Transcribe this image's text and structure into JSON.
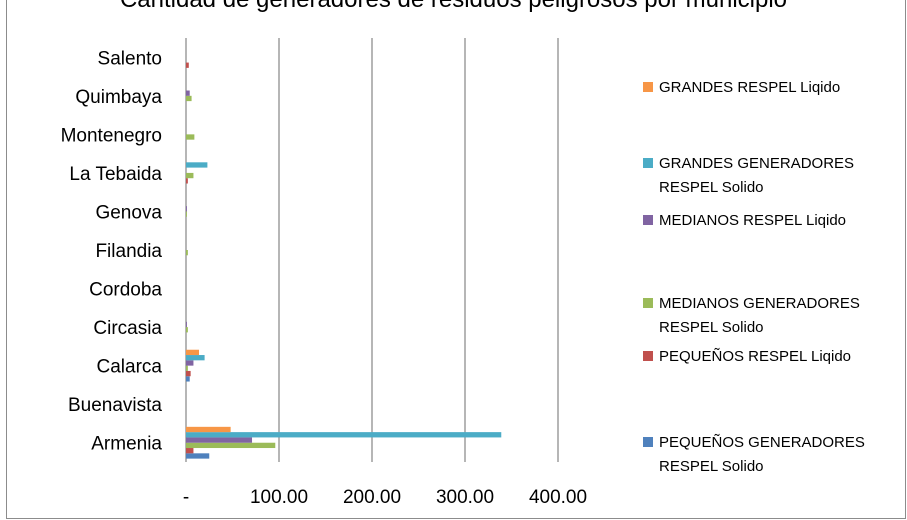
{
  "chart_data": {
    "type": "bar",
    "orientation": "horizontal",
    "title": "Cantidad de generadores de residuos peligrosos por municipio",
    "xlabel": "",
    "ylabel": "",
    "xlim": [
      0,
      400
    ],
    "x_ticks": [
      "-",
      "100.00",
      "200.00",
      "300.00",
      "400.00"
    ],
    "gridlines": "vertical",
    "legend_position": "right",
    "categories": [
      "Armenia",
      "Buenavista",
      "Calarca",
      "Circasia",
      "Cordoba",
      "Filandia",
      "Genova",
      "La Tebaida",
      "Montenegro",
      "Quimbaya",
      "Salento"
    ],
    "series": [
      {
        "name": "PEQUEÑOS GENERADORES RESPEL Solido",
        "color": "#4f81bd",
        "values": [
          25,
          0,
          4,
          0,
          0,
          0,
          0,
          0,
          0,
          0,
          0
        ]
      },
      {
        "name": "PEQUEÑOS RESPEL Liqido",
        "color": "#c0504d",
        "values": [
          8,
          0,
          5,
          0,
          0,
          0,
          0,
          2,
          0,
          0,
          3
        ]
      },
      {
        "name": "MEDIANOS GENERADORES RESPEL Solido",
        "color": "#9bbb59",
        "values": [
          96,
          0,
          2,
          2,
          0,
          2,
          1,
          8,
          9,
          6,
          0
        ]
      },
      {
        "name": "MEDIANOS RESPEL Liqido",
        "color": "#8064a2",
        "values": [
          71,
          0,
          8,
          1,
          0,
          0,
          1,
          0,
          0,
          4,
          0
        ]
      },
      {
        "name": "GRANDES GENERADORES RESPEL Solido",
        "color": "#4bacc6",
        "values": [
          339,
          0,
          20,
          0,
          0,
          0,
          0,
          23,
          0,
          0,
          0
        ]
      },
      {
        "name": "GRANDES RESPEL Liqido",
        "color": "#f79646",
        "values": [
          48,
          0,
          14,
          0,
          0,
          0,
          0,
          0,
          0,
          0,
          0
        ]
      }
    ]
  },
  "legend_order": [
    5,
    4,
    3,
    2,
    1,
    0
  ]
}
